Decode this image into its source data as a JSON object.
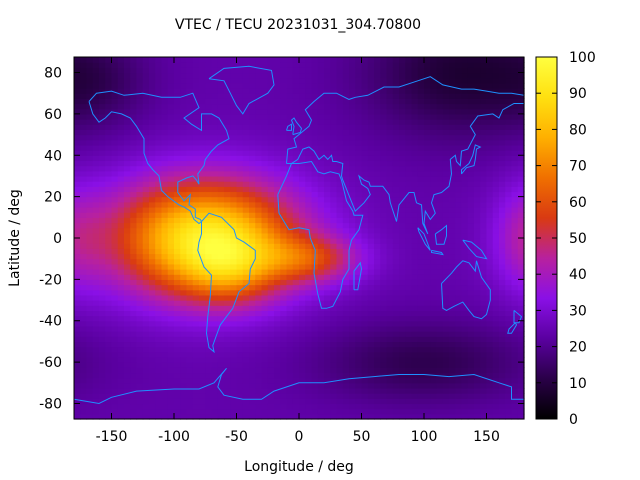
{
  "chart_data": {
    "type": "heatmap",
    "title": "VTEC / TECU 20231031_304.70800",
    "xlabel": "Longitude / deg",
    "ylabel": "Latitude / deg",
    "xlim": [
      -180,
      180
    ],
    "ylim": [
      -87.5,
      87.5
    ],
    "x_ticks": [
      -150,
      -100,
      -50,
      0,
      50,
      100,
      150
    ],
    "y_ticks": [
      -80,
      -60,
      -40,
      -20,
      0,
      20,
      40,
      60,
      80
    ],
    "colorbar": {
      "range": [
        0,
        100
      ],
      "ticks": [
        0,
        10,
        20,
        30,
        40,
        50,
        60,
        70,
        80,
        90,
        100
      ],
      "palette": [
        "#000000",
        "#2a0048",
        "#5a00a0",
        "#8a10e6",
        "#b8219e",
        "#d93a12",
        "#f07000",
        "#ffb000",
        "#ffe010",
        "#ffff40"
      ]
    },
    "grid_resolution": {
      "dlon": 5,
      "dlat": 2.5
    },
    "background_vtec": 24,
    "blobs": [
      {
        "lon": -75,
        "lat": 0,
        "vtec": 68,
        "sigma_lon": 52,
        "sigma_lat": 20
      },
      {
        "lon": -55,
        "lat": -15,
        "vtec": 18,
        "sigma_lon": 26,
        "sigma_lat": 12
      },
      {
        "lon": 10,
        "lat": -10,
        "vtec": 24,
        "sigma_lon": 28,
        "sigma_lat": 8
      },
      {
        "lon": 130,
        "lat": 80,
        "vtec": -16,
        "sigma_lon": 55,
        "sigma_lat": 22
      },
      {
        "lon": 100,
        "lat": -60,
        "vtec": -12,
        "sigma_lon": 60,
        "sigma_lat": 14
      },
      {
        "lon": -160,
        "lat": 75,
        "vtec": -6,
        "sigma_lon": 30,
        "sigma_lat": 15
      },
      {
        "lon": 180,
        "lat": 0,
        "vtec": 12,
        "sigma_lon": 18,
        "sigma_lat": 18
      }
    ],
    "coastline_color": "#1e90ff"
  }
}
